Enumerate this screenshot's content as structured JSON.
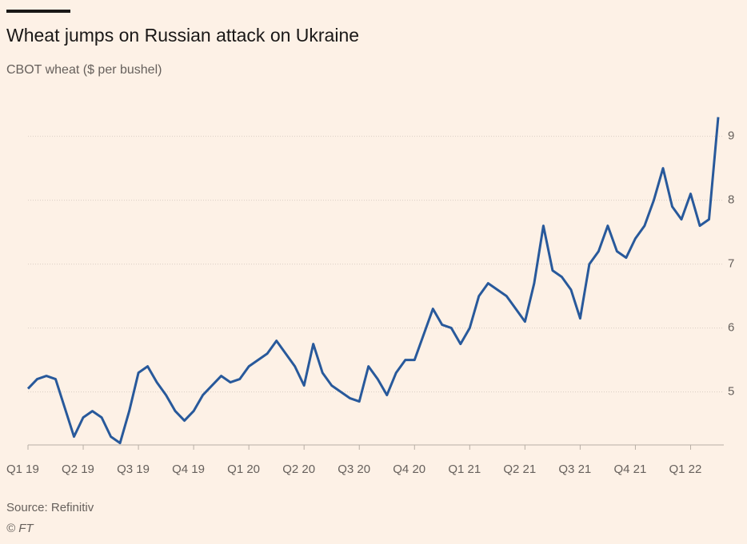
{
  "title": "Wheat jumps on Russian attack on Ukraine",
  "subtitle": "CBOT wheat ($ per bushel)",
  "source": "Source: Refinitiv",
  "credit": "© FT",
  "chart_data": {
    "type": "line",
    "categories": [
      "Q1 19",
      null,
      null,
      null,
      null,
      null,
      "Q2 19",
      null,
      null,
      null,
      null,
      null,
      "Q3 19",
      null,
      null,
      null,
      null,
      null,
      "Q4 19",
      null,
      null,
      null,
      null,
      null,
      "Q1 20",
      null,
      null,
      null,
      null,
      null,
      "Q2 20",
      null,
      null,
      null,
      null,
      null,
      "Q3 20",
      null,
      null,
      null,
      null,
      null,
      "Q4 20",
      null,
      null,
      null,
      null,
      null,
      "Q1 21",
      null,
      null,
      null,
      null,
      null,
      "Q2 21",
      null,
      null,
      null,
      null,
      null,
      "Q3 21",
      null,
      null,
      null,
      null,
      null,
      "Q4 21",
      null,
      null,
      null,
      null,
      null,
      "Q1 22",
      null,
      null,
      null
    ],
    "series": [
      {
        "name": "CBOT wheat",
        "color": "#28599b",
        "values": [
          5.05,
          5.2,
          5.25,
          5.2,
          4.75,
          4.3,
          4.6,
          4.7,
          4.6,
          4.3,
          4.2,
          4.7,
          5.3,
          5.4,
          5.15,
          4.95,
          4.7,
          4.55,
          4.7,
          4.95,
          5.1,
          5.25,
          5.15,
          5.2,
          5.4,
          5.5,
          5.6,
          5.8,
          5.6,
          5.4,
          5.1,
          5.75,
          5.3,
          5.1,
          5.0,
          4.9,
          4.85,
          5.4,
          5.2,
          4.95,
          5.3,
          5.5,
          5.5,
          5.9,
          6.3,
          6.05,
          6.0,
          5.75,
          6.0,
          6.5,
          6.7,
          6.6,
          6.5,
          6.3,
          6.1,
          6.7,
          7.6,
          6.9,
          6.8,
          6.6,
          6.15,
          7.0,
          7.2,
          7.6,
          7.2,
          7.1,
          7.4,
          7.6,
          8.0,
          8.5,
          7.9,
          7.7,
          8.1,
          7.6,
          7.7,
          9.3
        ]
      }
    ],
    "ylim": [
      4.17,
      9.5
    ],
    "yticks": [
      5,
      6,
      7,
      8,
      9
    ],
    "grid": true
  }
}
